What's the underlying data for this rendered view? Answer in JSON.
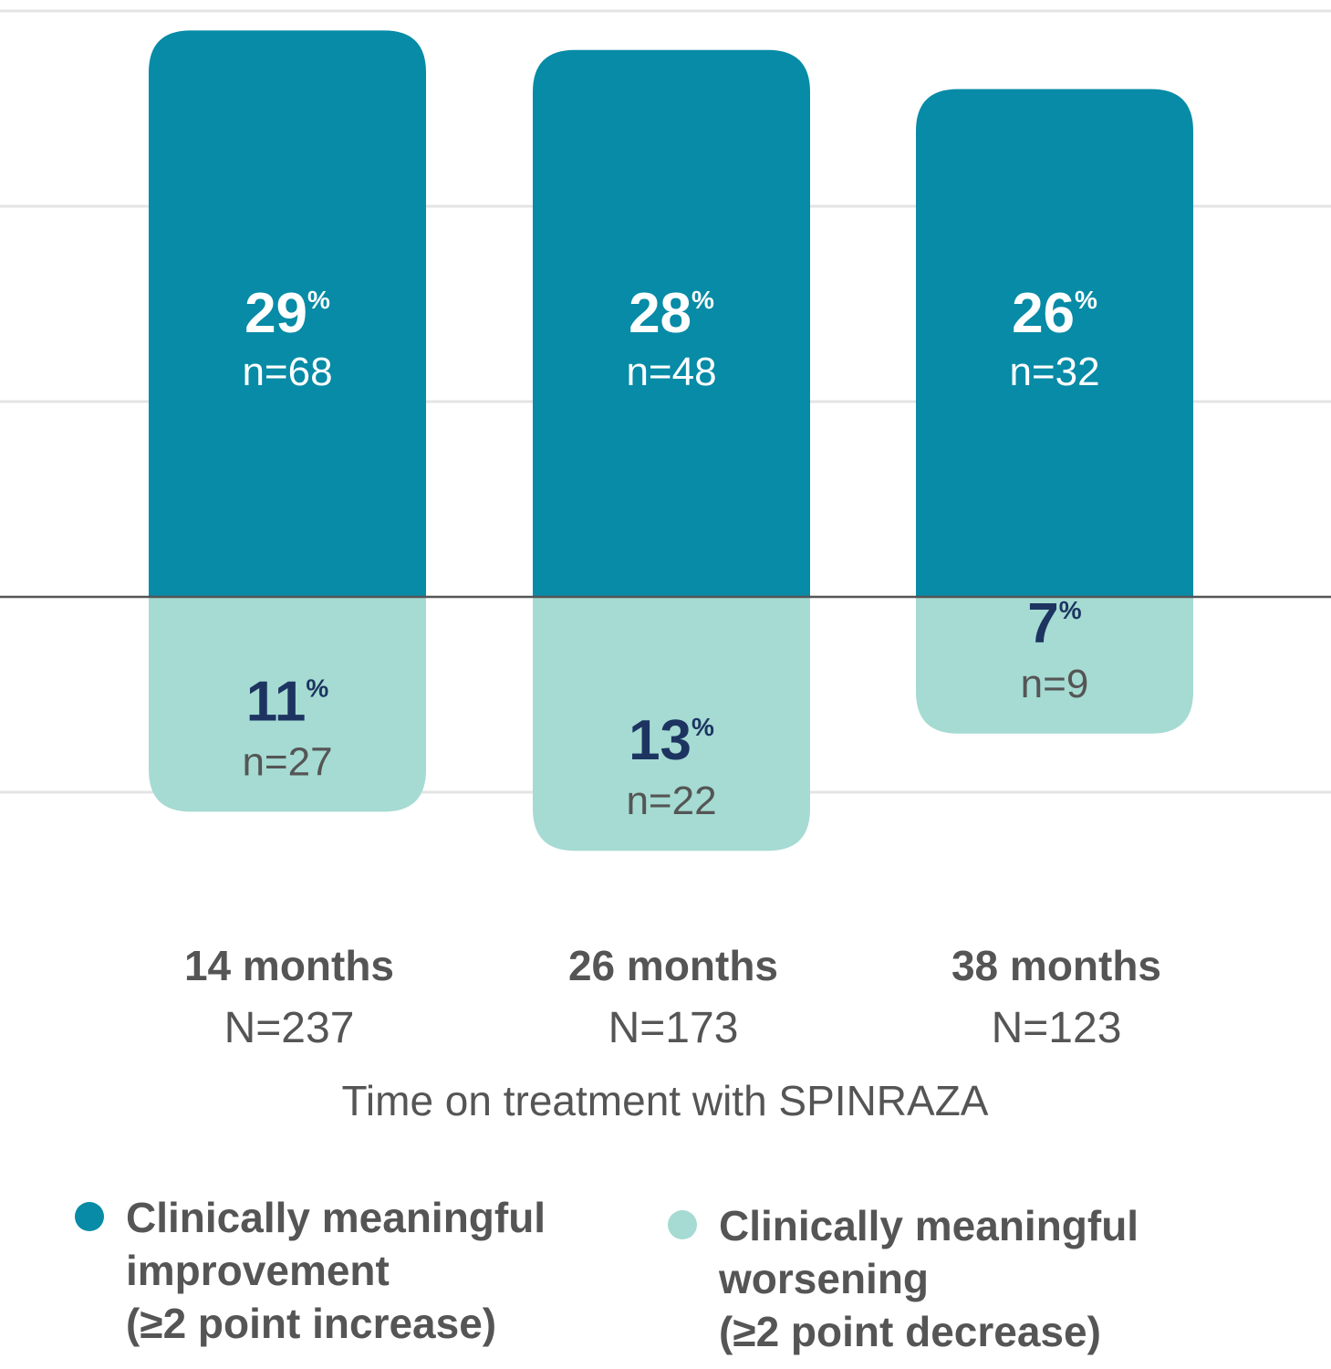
{
  "chart_data": {
    "type": "bar",
    "categories": [
      "14 months",
      "26 months",
      "38 months"
    ],
    "category_n": [
      "N=237",
      "N=173",
      "N=123"
    ],
    "xlabel": "Time on treatment with SPINRAZA",
    "colors": {
      "improvement": "#078ba6",
      "worsening": "#a5dbd2",
      "baseline": "#555555",
      "grid": "#e4e4e4"
    },
    "series": [
      {
        "name": "Clinically meaningful improvement (≥2 point increase)",
        "values": [
          29,
          28,
          26
        ],
        "n_labels": [
          "n=68",
          "n=48",
          "n=32"
        ],
        "value_labels": [
          "29",
          "28",
          "26"
        ]
      },
      {
        "name": "Clinically meaningful worsening (≥2 point decrease)",
        "values": [
          -11,
          -13,
          -7
        ],
        "n_labels": [
          "n=27",
          "n=22",
          "n=9"
        ],
        "value_labels": [
          "11",
          "13",
          "7"
        ]
      }
    ],
    "percent_symbol": "%",
    "ylim": [
      -15,
      30
    ],
    "grid": true,
    "gridlines": [
      -10,
      10,
      20,
      30
    ]
  },
  "legend": {
    "improvement_lines": [
      "Clinically meaningful",
      "improvement",
      "(≥2 point increase)"
    ],
    "worsening_lines": [
      "Clinically meaningful",
      "worsening",
      "(≥2 point decrease)"
    ]
  }
}
